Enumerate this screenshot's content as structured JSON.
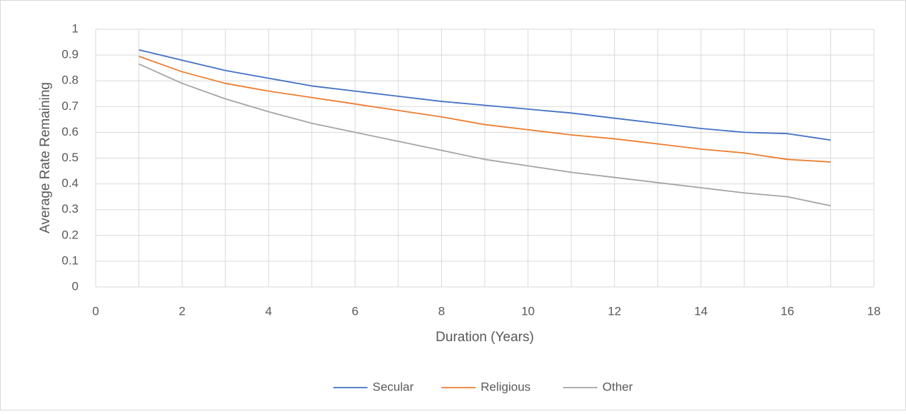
{
  "chart_data": {
    "type": "line",
    "x_label": "Duration (Years)",
    "y_label": "Average Rate Remaining",
    "x": [
      1,
      2,
      3,
      4,
      5,
      6,
      7,
      8,
      9,
      10,
      11,
      12,
      13,
      14,
      15,
      16,
      17
    ],
    "series": [
      {
        "name": "Secular",
        "color": "#4472c4",
        "values": [
          0.92,
          0.88,
          0.84,
          0.81,
          0.78,
          0.76,
          0.74,
          0.72,
          0.705,
          0.69,
          0.675,
          0.655,
          0.635,
          0.615,
          0.6,
          0.595,
          0.57
        ]
      },
      {
        "name": "Religious",
        "color": "#ed7d31",
        "values": [
          0.895,
          0.835,
          0.79,
          0.76,
          0.735,
          0.71,
          0.685,
          0.66,
          0.63,
          0.61,
          0.59,
          0.575,
          0.555,
          0.535,
          0.52,
          0.495,
          0.485
        ]
      },
      {
        "name": "Other",
        "color": "#a5a5a5",
        "values": [
          0.865,
          0.79,
          0.73,
          0.68,
          0.635,
          0.6,
          0.565,
          0.53,
          0.495,
          0.47,
          0.445,
          0.425,
          0.405,
          0.385,
          0.365,
          0.35,
          0.315
        ]
      }
    ],
    "xlim": [
      0,
      18
    ],
    "xticks": [
      0,
      2,
      4,
      6,
      8,
      10,
      12,
      14,
      16,
      18
    ],
    "x_minor_ticks": [
      1,
      3,
      5,
      7,
      9,
      11,
      13,
      15,
      17
    ],
    "ylim": [
      0,
      1
    ],
    "yticks": [
      0,
      0.1,
      0.2,
      0.3,
      0.4,
      0.5,
      0.6,
      0.7,
      0.8,
      0.9,
      1
    ],
    "grid": true,
    "legend": "bottom"
  }
}
